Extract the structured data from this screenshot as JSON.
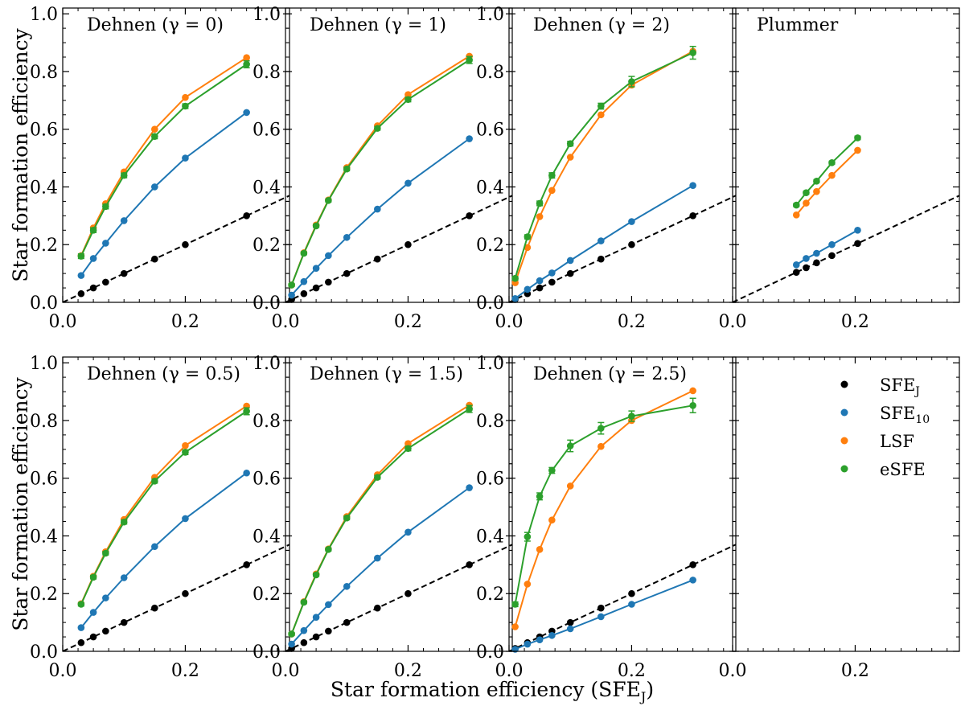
{
  "figure": {
    "xlabel": "Star formation efficiency (SFE",
    "xlabel_sub": "J",
    "xlabel_close": ")",
    "ylabel": "Star formation efficiency"
  },
  "legend": {
    "entries": [
      {
        "key": "sfej",
        "label": "SFE",
        "sub": "J"
      },
      {
        "key": "sfe10",
        "label": "SFE",
        "sub": "10"
      },
      {
        "key": "lsf",
        "label": "LSF",
        "sub": ""
      },
      {
        "key": "esfe",
        "label": "eSFE",
        "sub": ""
      }
    ]
  },
  "chart_data": [
    {
      "type": "line",
      "title": "Dehnen (γ = 0)",
      "xlim": [
        0,
        0.37
      ],
      "ylim": [
        0,
        1.02
      ],
      "xticks": [
        0.0,
        0.2
      ],
      "xtick_labels": [
        "0.0",
        "0.2"
      ],
      "yticks": [
        0.0,
        0.2,
        0.4,
        0.6,
        0.8,
        1.0
      ],
      "ytick_labels": [
        "0.0",
        "0.2",
        "0.4",
        "0.6",
        "0.8",
        "1.0"
      ],
      "reference_line": {
        "style": "dashed",
        "color": "#000000",
        "slope": 1
      },
      "series": [
        {
          "name": "SFE_J",
          "color": "#000000",
          "line": false,
          "x": [
            0.03,
            0.05,
            0.07,
            0.1,
            0.15,
            0.2,
            0.3
          ],
          "y": [
            0.03,
            0.05,
            0.07,
            0.1,
            0.15,
            0.2,
            0.3
          ]
        },
        {
          "name": "SFE_10",
          "color": "#1f77b4",
          "line": true,
          "x": [
            0.03,
            0.05,
            0.07,
            0.1,
            0.15,
            0.2,
            0.3
          ],
          "y": [
            0.093,
            0.152,
            0.205,
            0.283,
            0.4,
            0.5,
            0.658
          ]
        },
        {
          "name": "LSF",
          "color": "#ff7f0e",
          "line": true,
          "x": [
            0.03,
            0.05,
            0.07,
            0.1,
            0.15,
            0.2,
            0.3
          ],
          "y": [
            0.162,
            0.258,
            0.342,
            0.452,
            0.6,
            0.71,
            0.848
          ]
        },
        {
          "name": "eSFE",
          "color": "#2ca02c",
          "line": true,
          "x": [
            0.03,
            0.05,
            0.07,
            0.1,
            0.15,
            0.2,
            0.3
          ],
          "y": [
            0.16,
            0.25,
            0.332,
            0.44,
            0.575,
            0.68,
            0.825
          ],
          "err": [
            0.008,
            0.008,
            0.008,
            0.008,
            0.008,
            0.008,
            0.012
          ]
        }
      ]
    },
    {
      "type": "line",
      "title": "Dehnen (γ = 1)",
      "xlim": [
        0,
        0.37
      ],
      "ylim": [
        0,
        1.02
      ],
      "xticks": [
        0.0,
        0.2
      ],
      "xtick_labels": [
        "0.0",
        "0.2"
      ],
      "yticks": [
        0.0,
        0.2,
        0.4,
        0.6,
        0.8,
        1.0
      ],
      "ytick_labels": [
        "0.0",
        "0.2",
        "0.4",
        "0.6",
        "0.8",
        "1.0"
      ],
      "reference_line": {
        "style": "dashed",
        "color": "#000000",
        "slope": 1
      },
      "series": [
        {
          "name": "SFE_J",
          "color": "#000000",
          "line": false,
          "x": [
            0.01,
            0.03,
            0.05,
            0.07,
            0.1,
            0.15,
            0.2,
            0.3
          ],
          "y": [
            0.01,
            0.03,
            0.05,
            0.07,
            0.1,
            0.15,
            0.2,
            0.3
          ]
        },
        {
          "name": "SFE_10",
          "color": "#1f77b4",
          "line": true,
          "x": [
            0.01,
            0.03,
            0.05,
            0.07,
            0.1,
            0.15,
            0.2,
            0.3
          ],
          "y": [
            0.025,
            0.072,
            0.118,
            0.162,
            0.225,
            0.323,
            0.413,
            0.567
          ]
        },
        {
          "name": "LSF",
          "color": "#ff7f0e",
          "line": true,
          "x": [
            0.01,
            0.03,
            0.05,
            0.07,
            0.1,
            0.15,
            0.2,
            0.3
          ],
          "y": [
            0.06,
            0.172,
            0.268,
            0.355,
            0.467,
            0.612,
            0.72,
            0.853
          ]
        },
        {
          "name": "eSFE",
          "color": "#2ca02c",
          "line": true,
          "x": [
            0.01,
            0.03,
            0.05,
            0.07,
            0.1,
            0.15,
            0.2,
            0.3
          ],
          "y": [
            0.06,
            0.17,
            0.265,
            0.353,
            0.462,
            0.603,
            0.703,
            0.84
          ],
          "err": [
            0.005,
            0.005,
            0.005,
            0.005,
            0.006,
            0.006,
            0.008,
            0.012
          ]
        }
      ]
    },
    {
      "type": "line",
      "title": "Dehnen (γ = 2)",
      "xlim": [
        0,
        0.37
      ],
      "ylim": [
        0,
        1.02
      ],
      "xticks": [
        0.0,
        0.2
      ],
      "xtick_labels": [
        "0.0",
        "0.2"
      ],
      "yticks": [
        0.0,
        0.2,
        0.4,
        0.6,
        0.8,
        1.0
      ],
      "ytick_labels": [
        "0.0",
        "0.2",
        "0.4",
        "0.6",
        "0.8",
        "1.0"
      ],
      "reference_line": {
        "style": "dashed",
        "color": "#000000",
        "slope": 1
      },
      "series": [
        {
          "name": "SFE_J",
          "color": "#000000",
          "line": false,
          "x": [
            0.01,
            0.03,
            0.05,
            0.07,
            0.1,
            0.15,
            0.2,
            0.3
          ],
          "y": [
            0.01,
            0.03,
            0.05,
            0.07,
            0.1,
            0.15,
            0.2,
            0.3
          ]
        },
        {
          "name": "SFE_10",
          "color": "#1f77b4",
          "line": true,
          "x": [
            0.01,
            0.03,
            0.05,
            0.07,
            0.1,
            0.15,
            0.2,
            0.3
          ],
          "y": [
            0.013,
            0.045,
            0.075,
            0.102,
            0.145,
            0.213,
            0.28,
            0.405
          ]
        },
        {
          "name": "LSF",
          "color": "#ff7f0e",
          "line": true,
          "x": [
            0.01,
            0.03,
            0.05,
            0.07,
            0.1,
            0.15,
            0.2,
            0.3
          ],
          "y": [
            0.068,
            0.19,
            0.297,
            0.388,
            0.503,
            0.65,
            0.753,
            0.87
          ]
        },
        {
          "name": "eSFE",
          "color": "#2ca02c",
          "line": true,
          "x": [
            0.01,
            0.03,
            0.05,
            0.07,
            0.1,
            0.15,
            0.2,
            0.3
          ],
          "y": [
            0.083,
            0.227,
            0.343,
            0.44,
            0.55,
            0.68,
            0.765,
            0.865
          ],
          "err": [
            0.006,
            0.007,
            0.008,
            0.009,
            0.008,
            0.01,
            0.018,
            0.022
          ]
        }
      ]
    },
    {
      "type": "line",
      "title": "Plummer",
      "xlim": [
        0,
        0.37
      ],
      "ylim": [
        0,
        1.02
      ],
      "xticks": [
        0.0,
        0.2
      ],
      "xtick_labels": [
        "0.0",
        "0.2"
      ],
      "yticks": [
        0.0,
        0.2,
        0.4,
        0.6,
        0.8,
        1.0
      ],
      "ytick_labels": [],
      "reference_line": {
        "style": "dashed",
        "color": "#000000",
        "slope": 1
      },
      "series": [
        {
          "name": "SFE_J",
          "color": "#000000",
          "line": false,
          "x": [
            0.104,
            0.12,
            0.137,
            0.162,
            0.204
          ],
          "y": [
            0.104,
            0.12,
            0.137,
            0.162,
            0.204
          ]
        },
        {
          "name": "SFE_10",
          "color": "#1f77b4",
          "line": true,
          "x": [
            0.104,
            0.12,
            0.137,
            0.162,
            0.204
          ],
          "y": [
            0.13,
            0.152,
            0.17,
            0.2,
            0.25
          ]
        },
        {
          "name": "LSF",
          "color": "#ff7f0e",
          "line": true,
          "x": [
            0.104,
            0.12,
            0.137,
            0.162,
            0.204
          ],
          "y": [
            0.303,
            0.344,
            0.384,
            0.44,
            0.527
          ]
        },
        {
          "name": "eSFE",
          "color": "#2ca02c",
          "line": true,
          "x": [
            0.104,
            0.12,
            0.137,
            0.162,
            0.204
          ],
          "y": [
            0.337,
            0.38,
            0.42,
            0.484,
            0.57
          ],
          "err": [
            0.005,
            0.005,
            0.005,
            0.005,
            0.006
          ]
        }
      ]
    },
    {
      "type": "line",
      "title": "Dehnen (γ = 0.5)",
      "xlim": [
        0,
        0.37
      ],
      "ylim": [
        0,
        1.02
      ],
      "xticks": [
        0.0,
        0.2
      ],
      "xtick_labels": [
        "0.0",
        "0.2"
      ],
      "yticks": [
        0.0,
        0.2,
        0.4,
        0.6,
        0.8,
        1.0
      ],
      "ytick_labels": [
        "0.0",
        "0.2",
        "0.4",
        "0.6",
        "0.8",
        "1.0"
      ],
      "reference_line": {
        "style": "dashed",
        "color": "#000000",
        "slope": 1
      },
      "series": [
        {
          "name": "SFE_J",
          "color": "#000000",
          "line": false,
          "x": [
            0.03,
            0.05,
            0.07,
            0.1,
            0.15,
            0.2,
            0.3
          ],
          "y": [
            0.03,
            0.05,
            0.07,
            0.1,
            0.15,
            0.2,
            0.3
          ]
        },
        {
          "name": "SFE_10",
          "color": "#1f77b4",
          "line": true,
          "x": [
            0.03,
            0.05,
            0.07,
            0.1,
            0.15,
            0.2,
            0.3
          ],
          "y": [
            0.082,
            0.135,
            0.185,
            0.255,
            0.363,
            0.46,
            0.618
          ]
        },
        {
          "name": "LSF",
          "color": "#ff7f0e",
          "line": true,
          "x": [
            0.03,
            0.05,
            0.07,
            0.1,
            0.15,
            0.2,
            0.3
          ],
          "y": [
            0.165,
            0.26,
            0.345,
            0.457,
            0.603,
            0.713,
            0.85
          ]
        },
        {
          "name": "eSFE",
          "color": "#2ca02c",
          "line": true,
          "x": [
            0.03,
            0.05,
            0.07,
            0.1,
            0.15,
            0.2,
            0.3
          ],
          "y": [
            0.163,
            0.257,
            0.34,
            0.448,
            0.59,
            0.69,
            0.832
          ],
          "err": [
            0.006,
            0.006,
            0.006,
            0.007,
            0.007,
            0.008,
            0.012
          ]
        }
      ]
    },
    {
      "type": "line",
      "title": "Dehnen (γ = 1.5)",
      "xlim": [
        0,
        0.37
      ],
      "ylim": [
        0,
        1.02
      ],
      "xticks": [
        0.0,
        0.2
      ],
      "xtick_labels": [
        "0.0",
        "0.2"
      ],
      "yticks": [
        0.0,
        0.2,
        0.4,
        0.6,
        0.8,
        1.0
      ],
      "ytick_labels": [
        "0.0",
        "0.2",
        "0.4",
        "0.6",
        "0.8",
        "1.0"
      ],
      "reference_line": {
        "style": "dashed",
        "color": "#000000",
        "slope": 1
      },
      "series": [
        {
          "name": "SFE_J",
          "color": "#000000",
          "line": false,
          "x": [
            0.01,
            0.03,
            0.05,
            0.07,
            0.1,
            0.15,
            0.2,
            0.3
          ],
          "y": [
            0.01,
            0.03,
            0.05,
            0.07,
            0.1,
            0.15,
            0.2,
            0.3
          ]
        },
        {
          "name": "SFE_10",
          "color": "#1f77b4",
          "line": true,
          "x": [
            0.01,
            0.03,
            0.05,
            0.07,
            0.1,
            0.15,
            0.2,
            0.3
          ],
          "y": [
            0.025,
            0.072,
            0.118,
            0.162,
            0.225,
            0.323,
            0.413,
            0.567
          ]
        },
        {
          "name": "LSF",
          "color": "#ff7f0e",
          "line": true,
          "x": [
            0.01,
            0.03,
            0.05,
            0.07,
            0.1,
            0.15,
            0.2,
            0.3
          ],
          "y": [
            0.06,
            0.172,
            0.268,
            0.355,
            0.467,
            0.612,
            0.72,
            0.853
          ]
        },
        {
          "name": "eSFE",
          "color": "#2ca02c",
          "line": true,
          "x": [
            0.01,
            0.03,
            0.05,
            0.07,
            0.1,
            0.15,
            0.2,
            0.3
          ],
          "y": [
            0.06,
            0.17,
            0.265,
            0.353,
            0.462,
            0.603,
            0.703,
            0.84
          ],
          "err": [
            0.005,
            0.005,
            0.005,
            0.005,
            0.006,
            0.006,
            0.008,
            0.012
          ]
        }
      ]
    },
    {
      "type": "line",
      "title": "Dehnen (γ = 2.5)",
      "xlim": [
        0,
        0.37
      ],
      "ylim": [
        0,
        1.02
      ],
      "xticks": [
        0.0,
        0.2
      ],
      "xtick_labels": [
        "0.0",
        "0.2"
      ],
      "yticks": [
        0.0,
        0.2,
        0.4,
        0.6,
        0.8,
        1.0
      ],
      "ytick_labels": [
        "0.0",
        "0.2",
        "0.4",
        "0.6",
        "0.8",
        "1.0"
      ],
      "reference_line": {
        "style": "dashed",
        "color": "#000000",
        "slope": 1
      },
      "series": [
        {
          "name": "SFE_J",
          "color": "#000000",
          "line": false,
          "x": [
            0.01,
            0.03,
            0.05,
            0.07,
            0.1,
            0.15,
            0.2,
            0.3
          ],
          "y": [
            0.01,
            0.03,
            0.05,
            0.07,
            0.1,
            0.15,
            0.2,
            0.3
          ]
        },
        {
          "name": "SFE_10",
          "color": "#1f77b4",
          "line": true,
          "x": [
            0.01,
            0.03,
            0.05,
            0.07,
            0.1,
            0.15,
            0.2,
            0.3
          ],
          "y": [
            0.007,
            0.025,
            0.04,
            0.055,
            0.078,
            0.12,
            0.163,
            0.247
          ]
        },
        {
          "name": "LSF",
          "color": "#ff7f0e",
          "line": true,
          "x": [
            0.01,
            0.03,
            0.05,
            0.07,
            0.1,
            0.15,
            0.2,
            0.3
          ],
          "y": [
            0.085,
            0.233,
            0.353,
            0.455,
            0.573,
            0.71,
            0.8,
            0.903
          ]
        },
        {
          "name": "eSFE",
          "color": "#2ca02c",
          "line": true,
          "x": [
            0.01,
            0.03,
            0.05,
            0.07,
            0.1,
            0.15,
            0.2,
            0.3
          ],
          "y": [
            0.163,
            0.397,
            0.537,
            0.627,
            0.712,
            0.773,
            0.815,
            0.852
          ],
          "err": [
            0.008,
            0.015,
            0.012,
            0.01,
            0.02,
            0.02,
            0.018,
            0.025
          ]
        }
      ]
    },
    {
      "type": "line",
      "title": "",
      "xlim": [
        0,
        0.37
      ],
      "ylim": [
        0,
        1.02
      ],
      "xticks": [
        0.0,
        0.2
      ],
      "xtick_labels": [
        "0.0",
        "0.2"
      ],
      "yticks": [
        0.0,
        0.2,
        0.4,
        0.6,
        0.8,
        1.0
      ],
      "ytick_labels": [],
      "series": []
    }
  ]
}
